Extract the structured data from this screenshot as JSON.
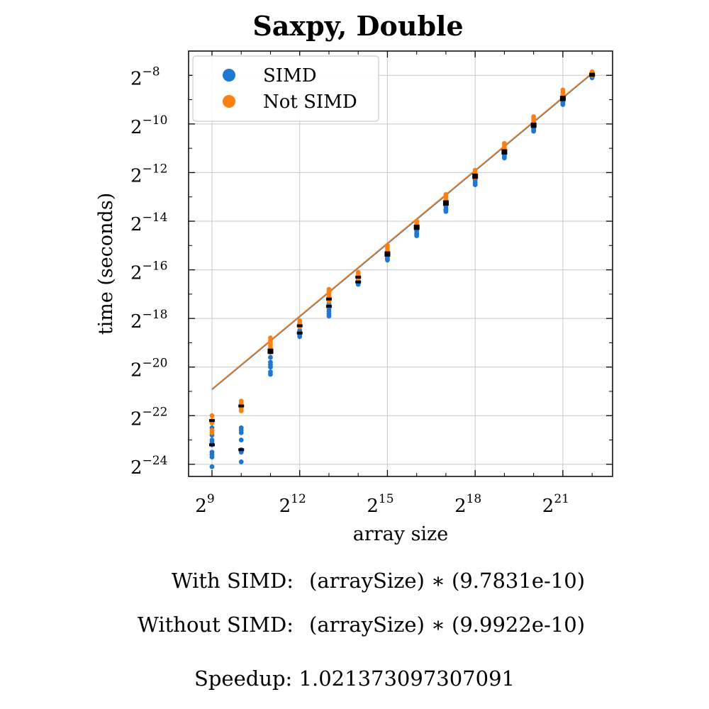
{
  "chart_data": {
    "type": "scatter",
    "title": "Saxpy, Double",
    "xlabel": "array size",
    "ylabel": "time (seconds)",
    "x_scale": "log2",
    "y_scale": "log2",
    "xlim_log2": [
      8.2,
      22.7
    ],
    "ylim_log2": [
      -24.5,
      -7.0
    ],
    "x_ticks": [
      {
        "base": "2",
        "exp": "9",
        "log2": 9
      },
      {
        "base": "2",
        "exp": "12",
        "log2": 12
      },
      {
        "base": "2",
        "exp": "15",
        "log2": 15
      },
      {
        "base": "2",
        "exp": "18",
        "log2": 18
      },
      {
        "base": "2",
        "exp": "21",
        "log2": 21
      }
    ],
    "y_ticks": [
      {
        "base": "2",
        "exp": "−8",
        "log2": -8
      },
      {
        "base": "2",
        "exp": "−10",
        "log2": -10
      },
      {
        "base": "2",
        "exp": "−12",
        "log2": -12
      },
      {
        "base": "2",
        "exp": "−14",
        "log2": -14
      },
      {
        "base": "2",
        "exp": "−16",
        "log2": -16
      },
      {
        "base": "2",
        "exp": "−18",
        "log2": -18
      },
      {
        "base": "2",
        "exp": "−20",
        "log2": -20
      },
      {
        "base": "2",
        "exp": "−22",
        "log2": -22
      },
      {
        "base": "2",
        "exp": "−24",
        "log2": -24
      }
    ],
    "grid": true,
    "legend_position": "top-left",
    "series": [
      {
        "name": "SIMD",
        "color": "#1f77d4",
        "fit_coefficient": 9.7831e-10,
        "points": [
          {
            "x_log2": 9,
            "y_log2": [
              -22.5,
              -22.8,
              -23.0,
              -23.1,
              -23.2,
              -23.5,
              -23.6,
              -23.7,
              -24.1
            ]
          },
          {
            "x_log2": 10,
            "y_log2": [
              -22.5,
              -22.6,
              -22.7,
              -23.0,
              -23.4,
              -23.5,
              -23.9
            ]
          },
          {
            "x_log2": 11,
            "y_log2": [
              -19.6,
              -19.8,
              -19.9,
              -20.0,
              -20.2,
              -20.3
            ]
          },
          {
            "x_log2": 12,
            "y_log2": [
              -18.5,
              -18.6,
              -18.7,
              -18.75
            ]
          },
          {
            "x_log2": 13,
            "y_log2": [
              -17.4,
              -17.6,
              -17.7,
              -17.8,
              -17.9
            ]
          },
          {
            "x_log2": 14,
            "y_log2": [
              -16.4,
              -16.5,
              -16.55,
              -16.6
            ]
          },
          {
            "x_log2": 15,
            "y_log2": [
              -15.4,
              -15.5,
              -15.55,
              -15.6
            ]
          },
          {
            "x_log2": 16,
            "y_log2": [
              -14.4,
              -14.5,
              -14.55,
              -14.6
            ]
          },
          {
            "x_log2": 17,
            "y_log2": [
              -13.4,
              -13.5,
              -13.55,
              -13.6
            ]
          },
          {
            "x_log2": 18,
            "y_log2": [
              -12.3,
              -12.4,
              -12.45,
              -12.5
            ]
          },
          {
            "x_log2": 19,
            "y_log2": [
              -11.2,
              -11.3,
              -11.35,
              -11.4
            ]
          },
          {
            "x_log2": 20,
            "y_log2": [
              -10.1,
              -10.2,
              -10.25,
              -10.3
            ]
          },
          {
            "x_log2": 21,
            "y_log2": [
              -9.05,
              -9.1,
              -9.15,
              -9.2
            ]
          },
          {
            "x_log2": 22,
            "y_log2": [
              -7.95,
              -8.0,
              -8.05,
              -8.1
            ]
          }
        ]
      },
      {
        "name": "Not SIMD",
        "color": "#ff7f0e",
        "fit_coefficient": 9.9922e-10,
        "points": [
          {
            "x_log2": 9,
            "y_log2": [
              -22.0,
              -22.2,
              -22.3,
              -22.6,
              -22.7
            ]
          },
          {
            "x_log2": 10,
            "y_log2": [
              -21.4,
              -21.5,
              -21.6,
              -21.7,
              -21.8
            ]
          },
          {
            "x_log2": 11,
            "y_log2": [
              -18.8,
              -18.9,
              -19.0,
              -19.1,
              -19.2,
              -19.3,
              -19.4
            ]
          },
          {
            "x_log2": 12,
            "y_log2": [
              -18.1,
              -18.2,
              -18.3,
              -18.35
            ]
          },
          {
            "x_log2": 13,
            "y_log2": [
              -16.8,
              -16.9,
              -17.0,
              -17.1,
              -17.2,
              -17.3
            ]
          },
          {
            "x_log2": 14,
            "y_log2": [
              -16.1,
              -16.2,
              -16.3,
              -16.35
            ]
          },
          {
            "x_log2": 15,
            "y_log2": [
              -15.0,
              -15.1,
              -15.2,
              -15.3
            ]
          },
          {
            "x_log2": 16,
            "y_log2": [
              -14.0,
              -14.1,
              -14.2,
              -14.25
            ]
          },
          {
            "x_log2": 17,
            "y_log2": [
              -12.9,
              -13.0,
              -13.1,
              -13.2
            ]
          },
          {
            "x_log2": 18,
            "y_log2": [
              -11.9,
              -12.0,
              -12.1,
              -12.2
            ]
          },
          {
            "x_log2": 19,
            "y_log2": [
              -10.8,
              -10.9,
              -11.0,
              -11.1
            ]
          },
          {
            "x_log2": 20,
            "y_log2": [
              -9.7,
              -9.8,
              -9.9,
              -10.0
            ]
          },
          {
            "x_log2": 21,
            "y_log2": [
              -8.6,
              -8.7,
              -8.8,
              -8.9
            ]
          },
          {
            "x_log2": 22,
            "y_log2": [
              -7.85,
              -7.9,
              -7.95,
              -8.0
            ]
          }
        ]
      }
    ],
    "mean_markers": [
      {
        "x_log2": 9,
        "y_log2": [
          -22.2,
          -23.2
        ]
      },
      {
        "x_log2": 10,
        "y_log2": [
          -21.6,
          -23.4
        ]
      },
      {
        "x_log2": 11,
        "y_log2": [
          -19.3,
          -19.4
        ]
      },
      {
        "x_log2": 12,
        "y_log2": [
          -18.3,
          -18.6
        ]
      },
      {
        "x_log2": 13,
        "y_log2": [
          -17.2,
          -17.5
        ]
      },
      {
        "x_log2": 14,
        "y_log2": [
          -16.3,
          -16.5
        ]
      },
      {
        "x_log2": 15,
        "y_log2": [
          -15.3,
          -15.4
        ]
      },
      {
        "x_log2": 16,
        "y_log2": [
          -14.2,
          -14.3
        ]
      },
      {
        "x_log2": 17,
        "y_log2": [
          -13.2,
          -13.3
        ]
      },
      {
        "x_log2": 18,
        "y_log2": [
          -12.1,
          -12.2
        ]
      },
      {
        "x_log2": 19,
        "y_log2": [
          -11.1,
          -11.2
        ]
      },
      {
        "x_log2": 20,
        "y_log2": [
          -10.0,
          -10.1
        ]
      },
      {
        "x_log2": 21,
        "y_log2": [
          -8.9,
          -9.0
        ]
      },
      {
        "x_log2": 22,
        "y_log2": [
          -7.95,
          -8.0
        ]
      }
    ]
  },
  "footer": {
    "with_simd_label": "With SIMD:",
    "with_simd_value": "(arraySize) ∗ (9.7831e-10)",
    "without_simd_label": "Without SIMD:",
    "without_simd_value": "(arraySize) ∗ (9.9922e-10)",
    "speedup": "Speedup: 1.021373097307091"
  }
}
